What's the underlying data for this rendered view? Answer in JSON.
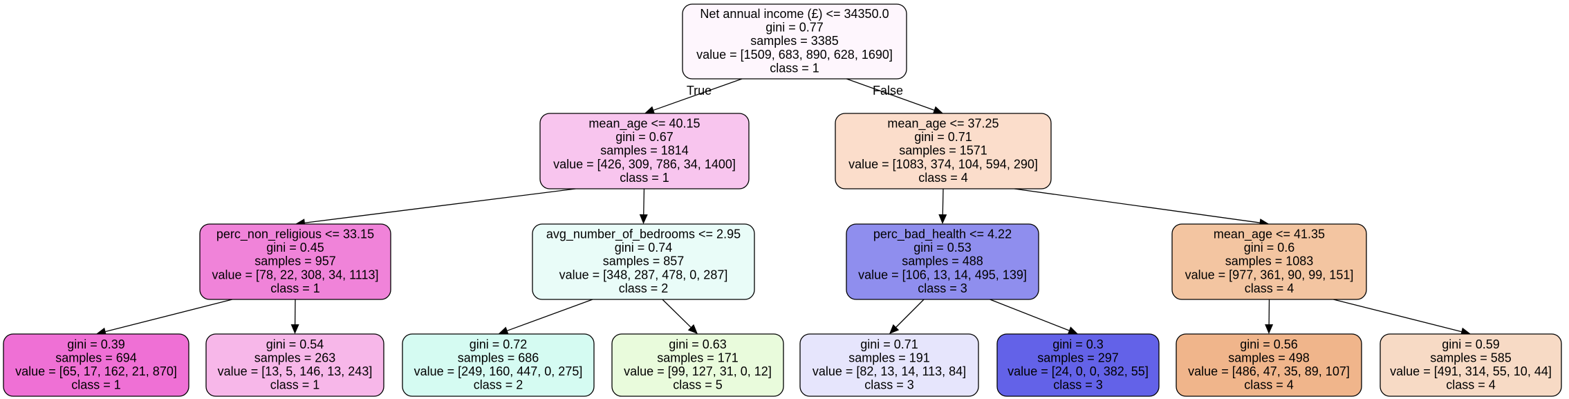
{
  "tree": {
    "nodes": [
      {
        "id": "n0",
        "lines": [
          "Net annual income (£) <= 34350.0",
          "gini = 0.77",
          "samples = 3385",
          "value = [1509, 683, 890, 628, 1690]",
          "class = 1"
        ],
        "fill": "#fef6fd"
      },
      {
        "id": "n1",
        "lines": [
          "mean_age <= 40.15",
          "gini = 0.67",
          "samples = 1814",
          "value = [426, 309, 786, 34, 1400]",
          "class = 1"
        ],
        "fill": "#f8c5ee"
      },
      {
        "id": "n2",
        "lines": [
          "mean_age <= 37.25",
          "gini = 0.71",
          "samples = 1571",
          "value = [1083, 374, 104, 594, 290]",
          "class = 4"
        ],
        "fill": "#fbddcb"
      },
      {
        "id": "n3",
        "lines": [
          "perc_non_religious <= 33.15",
          "gini = 0.45",
          "samples = 957",
          "value = [78, 22, 308, 34, 1113]",
          "class = 1"
        ],
        "fill": "#f083d9"
      },
      {
        "id": "n4",
        "lines": [
          "avg_number_of_bedrooms <= 2.95",
          "gini = 0.74",
          "samples = 857",
          "value = [348, 287, 478, 0, 287]",
          "class = 2"
        ],
        "fill": "#e9fcf8"
      },
      {
        "id": "n5",
        "lines": [
          "perc_bad_health <= 4.22",
          "gini = 0.53",
          "samples = 488",
          "value = [106, 13, 14, 495, 139]",
          "class = 3"
        ],
        "fill": "#8f8eee"
      },
      {
        "id": "n6",
        "lines": [
          "mean_age <= 41.35",
          "gini = 0.6",
          "samples = 1083",
          "value = [977, 361, 90, 99, 151]",
          "class = 4"
        ],
        "fill": "#f3c5a1"
      },
      {
        "id": "n7",
        "lines": [
          "gini = 0.39",
          "samples = 694",
          "value = [65, 17, 162, 21, 870]",
          "class = 1"
        ],
        "fill": "#ef70d5"
      },
      {
        "id": "n8",
        "lines": [
          "gini = 0.54",
          "samples = 263",
          "value = [13, 5, 146, 13, 243]",
          "class = 1"
        ],
        "fill": "#f7b7e9"
      },
      {
        "id": "n9",
        "lines": [
          "gini = 0.72",
          "samples = 686",
          "value = [249, 160, 447, 0, 275]",
          "class = 2"
        ],
        "fill": "#d5fbf2"
      },
      {
        "id": "n10",
        "lines": [
          "gini = 0.63",
          "samples = 171",
          "value = [99, 127, 31, 0, 12]",
          "class = 5"
        ],
        "fill": "#e9fbdc"
      },
      {
        "id": "n11",
        "lines": [
          "gini = 0.71",
          "samples = 191",
          "value = [82, 13, 14, 113, 84]",
          "class = 3"
        ],
        "fill": "#e6e5fc"
      },
      {
        "id": "n12",
        "lines": [
          "gini = 0.3",
          "samples = 297",
          "value = [24, 0, 0, 382, 55]",
          "class = 3"
        ],
        "fill": "#6362e8"
      },
      {
        "id": "n13",
        "lines": [
          "gini = 0.56",
          "samples = 498",
          "value = [486, 47, 35, 89, 107]",
          "class = 4"
        ],
        "fill": "#f0b58b"
      },
      {
        "id": "n14",
        "lines": [
          "gini = 0.59",
          "samples = 585",
          "value = [491, 314, 55, 10, 44]",
          "class = 4"
        ],
        "fill": "#f7dac5"
      }
    ],
    "edges": [
      {
        "from": "n0",
        "to": "n1",
        "label": "True"
      },
      {
        "from": "n0",
        "to": "n2",
        "label": "False"
      },
      {
        "from": "n1",
        "to": "n3",
        "label": ""
      },
      {
        "from": "n1",
        "to": "n4",
        "label": ""
      },
      {
        "from": "n2",
        "to": "n5",
        "label": ""
      },
      {
        "from": "n2",
        "to": "n6",
        "label": ""
      },
      {
        "from": "n3",
        "to": "n7",
        "label": ""
      },
      {
        "from": "n3",
        "to": "n8",
        "label": ""
      },
      {
        "from": "n4",
        "to": "n9",
        "label": ""
      },
      {
        "from": "n4",
        "to": "n10",
        "label": ""
      },
      {
        "from": "n5",
        "to": "n11",
        "label": ""
      },
      {
        "from": "n5",
        "to": "n12",
        "label": ""
      },
      {
        "from": "n6",
        "to": "n13",
        "label": ""
      },
      {
        "from": "n6",
        "to": "n14",
        "label": ""
      }
    ]
  }
}
